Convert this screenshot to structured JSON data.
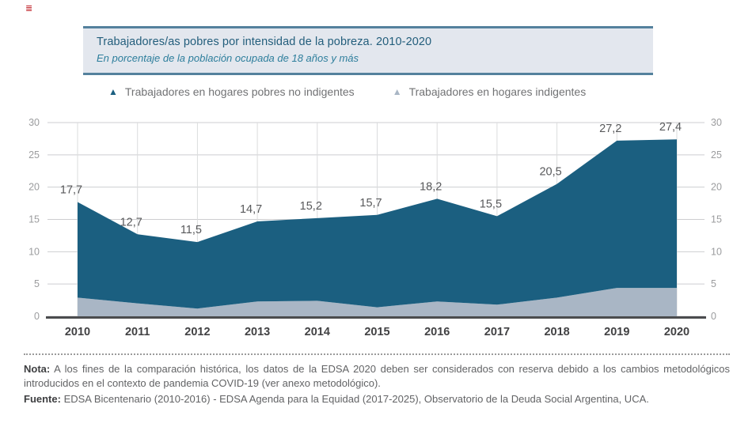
{
  "decorations": {
    "red_mark_glyph": "≣"
  },
  "header": {
    "title": "Trabajadores/as pobres por intensidad de la pobreza. 2010-2020",
    "subtitle": "En porcentaje de la población ocupada de 18 años y más"
  },
  "legend": {
    "marker_glyph": "▲",
    "items": [
      {
        "label": "Trabajadores en hogares pobres no indigentes",
        "color": "#1b5f80"
      },
      {
        "label": "Trabajadores en hogares indigentes",
        "color": "#a9b6c5"
      }
    ]
  },
  "chart_data": {
    "type": "area",
    "stacked": true,
    "title": "Trabajadores/as pobres por intensidad de la pobreza. 2010-2020",
    "subtitle": "En porcentaje de la población ocupada de 18 años y más",
    "categories": [
      "2010",
      "2011",
      "2012",
      "2013",
      "2014",
      "2015",
      "2016",
      "2017",
      "2018",
      "2019",
      "2020"
    ],
    "series": [
      {
        "name": "Trabajadores en hogares pobres no indigentes",
        "color": "#1b5f80",
        "values_mode": "cumulative-top",
        "values": [
          17.7,
          12.7,
          11.5,
          14.7,
          15.2,
          15.7,
          18.2,
          15.5,
          20.5,
          27.2,
          27.4
        ]
      },
      {
        "name": "Trabajadores en hogares indigentes",
        "color": "#a9b6c5",
        "estimated": true,
        "values": [
          2.9,
          2.0,
          1.2,
          2.3,
          2.4,
          1.4,
          2.3,
          1.8,
          2.9,
          4.4,
          4.4
        ]
      }
    ],
    "ylim": [
      0,
      30
    ],
    "yticks": [
      0,
      5,
      10,
      15,
      20,
      25,
      30
    ],
    "grid": true,
    "y_axis_sides": "both",
    "legend_position": "top",
    "value_label_decimal_separator": ","
  },
  "footer": {
    "nota_label": "Nota:",
    "nota_text": "A los fines de la comparación histórica, los datos de la EDSA 2020 deben ser considerados con reserva debido a los cambios metodológicos introducidos en el contexto de pandemia COVID-19 (ver anexo metodológico).",
    "fuente_label": "Fuente:",
    "fuente_text": "EDSA Bicentenario (2010-2016) - EDSA Agenda para la Equidad (2017-2025), Observatorio de la Deuda Social Argentina, UCA."
  },
  "colors": {
    "area_dark": "#1b5f80",
    "area_light": "#a9b6c5",
    "title_box_bg": "#e3e7ee",
    "title_box_border": "#54819d",
    "title_text": "#235e7c",
    "subtitle_text": "#2d7e9c",
    "axis_line": "#4b4c4e",
    "gridline": "#cdced0",
    "tick_text": "#9b9c9e",
    "year_text": "#414143",
    "data_label_text": "#58595b",
    "footer_text": "#626365",
    "red_mark": "#c1272d"
  }
}
